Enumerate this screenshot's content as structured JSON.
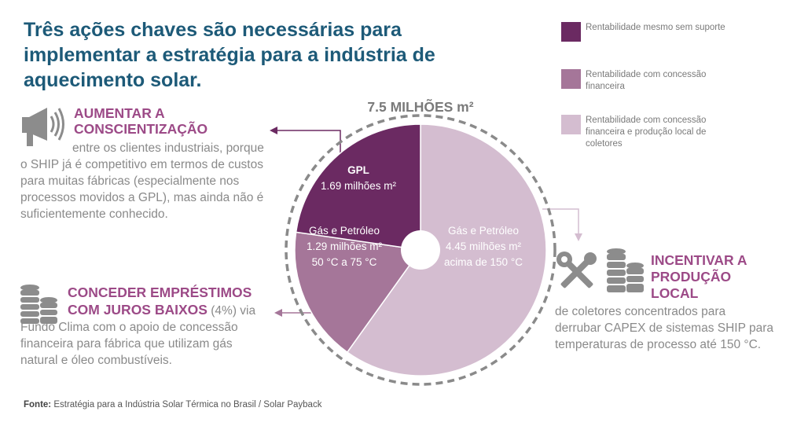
{
  "title": "Três ações chaves são necessárias para implementar a estratégia para a indústria de aquecimento solar.",
  "legend": [
    {
      "label": "Rentabilidade mesmo sem suporte",
      "color": "#6b2a62"
    },
    {
      "label": "Rentabilidade com concessão financeira",
      "color": "#a57699"
    },
    {
      "label": "Rentabilidade com concessão financeira e produção local de coletores",
      "color": "#d4bdd0"
    }
  ],
  "section1": {
    "heading": "AUMENTAR A CONSCIENTIZAÇÃO",
    "body": "entre os clientes industriais, porque o SHIP já é competitivo em termos de custos para muitas fábricas (especialmente nos processos movidos a GPL), mas ainda não é suficientemente conhecido.",
    "icon": "megaphone-icon"
  },
  "section2": {
    "heading1": "CONCEDER EMPRÉSTIMOS",
    "heading2": "COM JUROS BAIXOS",
    "heading_suffix": "(4%) via",
    "body": "Fundo Clima com o apoio de concessão financeira para fábrica que utilizam gás natural e óleo combustíveis.",
    "icon": "coin-stack-icon"
  },
  "section3": {
    "heading": "INCENTIVAR A PRODUÇÃO LOCAL",
    "body": "de coletores concentrados para derrubar CAPEX de sistemas SHIP para temperaturas de processo até 150 °C.",
    "icons": [
      "tools-icon",
      "coin-stack-icon"
    ]
  },
  "chart_data": {
    "type": "pie",
    "title": "7.5 MILHÕES m²",
    "total": 7.5,
    "unit": "milhões m²",
    "slices": [
      {
        "name": "GPL",
        "value": 1.69,
        "label_lines": [
          "GPL",
          "1.69 milhões m²"
        ],
        "color": "#6b2a62"
      },
      {
        "name": "Gás e Petróleo 50 °C a 75 °C",
        "value": 1.29,
        "label_lines": [
          "Gás e Petróleo",
          "1.29 milhões m²",
          "50 °C a 75 °C"
        ],
        "color": "#a57699"
      },
      {
        "name": "Gás e Petróleo acima de 150 °C",
        "value": 4.45,
        "label_lines": [
          "Gás e Petróleo",
          "4.45 milhões m²",
          "acima de 150 °C"
        ],
        "color": "#d4bdd0"
      }
    ]
  },
  "source": {
    "label": "Fonte:",
    "text": "Estratégia para a Indústria Solar Térmica no Brasil / Solar Payback"
  }
}
